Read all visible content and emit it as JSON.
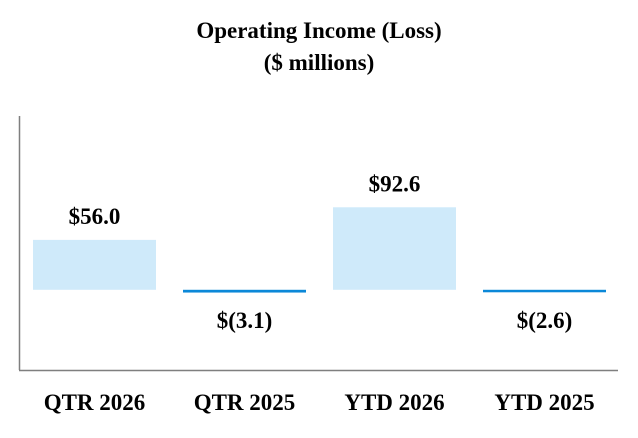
{
  "chart_data": {
    "type": "bar",
    "title": "Operating Income (Loss)",
    "subtitle": "($ millions)",
    "categories": [
      "QTR 2026",
      "QTR 2025",
      "YTD 2026",
      "YTD 2025"
    ],
    "values": [
      56.0,
      -3.1,
      92.6,
      -2.6
    ],
    "value_labels": [
      "$56.0",
      "$(3.1)",
      "$92.6",
      "$(2.6)"
    ],
    "ylim": [
      -90,
      195
    ],
    "grid": false,
    "legend": "none",
    "colors": {
      "positive": "#cfeafa",
      "negative": "#0b88d8",
      "axis": "#7f7f7f",
      "text": "#000000"
    }
  }
}
